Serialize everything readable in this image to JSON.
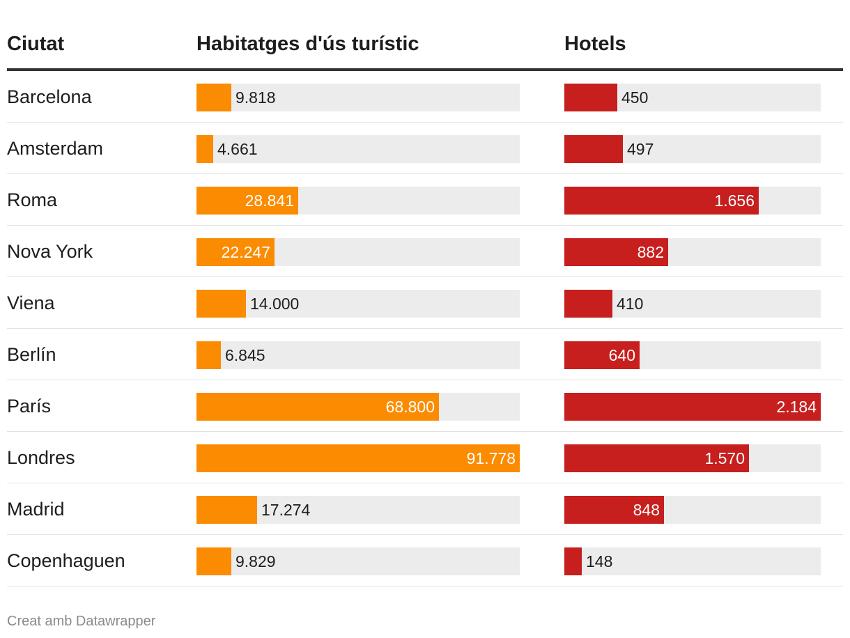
{
  "chart_data": {
    "type": "table",
    "columns": [
      "Ciutat",
      "Habitatges d'ús turístic",
      "Hotels"
    ],
    "series": [
      {
        "name": "Habitatges d'ús turístic",
        "color": "#fb8b00",
        "max": 91778
      },
      {
        "name": "Hotels",
        "color": "#c71e1e",
        "max": 2184
      }
    ],
    "rows": [
      {
        "city": "Barcelona",
        "vut": 9818,
        "vut_label": "9.818",
        "hotels": 450,
        "hotels_label": "450"
      },
      {
        "city": "Amsterdam",
        "vut": 4661,
        "vut_label": "4.661",
        "hotels": 497,
        "hotels_label": "497"
      },
      {
        "city": "Roma",
        "vut": 28841,
        "vut_label": "28.841",
        "hotels": 1656,
        "hotels_label": "1.656"
      },
      {
        "city": "Nova York",
        "vut": 22247,
        "vut_label": "22.247",
        "hotels": 882,
        "hotels_label": "882"
      },
      {
        "city": "Viena",
        "vut": 14000,
        "vut_label": "14.000",
        "hotels": 410,
        "hotels_label": "410"
      },
      {
        "city": "Berlín",
        "vut": 6845,
        "vut_label": "6.845",
        "hotels": 640,
        "hotels_label": "640"
      },
      {
        "city": "París",
        "vut": 68800,
        "vut_label": "68.800",
        "hotels": 2184,
        "hotels_label": "2.184"
      },
      {
        "city": "Londres",
        "vut": 91778,
        "vut_label": "91.778",
        "hotels": 1570,
        "hotels_label": "1.570"
      },
      {
        "city": "Madrid",
        "vut": 17274,
        "vut_label": "17.274",
        "hotels": 848,
        "hotels_label": "848"
      },
      {
        "city": "Copenhaguen",
        "vut": 9829,
        "vut_label": "9.829",
        "hotels": 148,
        "hotels_label": "148"
      }
    ],
    "footer": "Creat amb Datawrapper"
  }
}
